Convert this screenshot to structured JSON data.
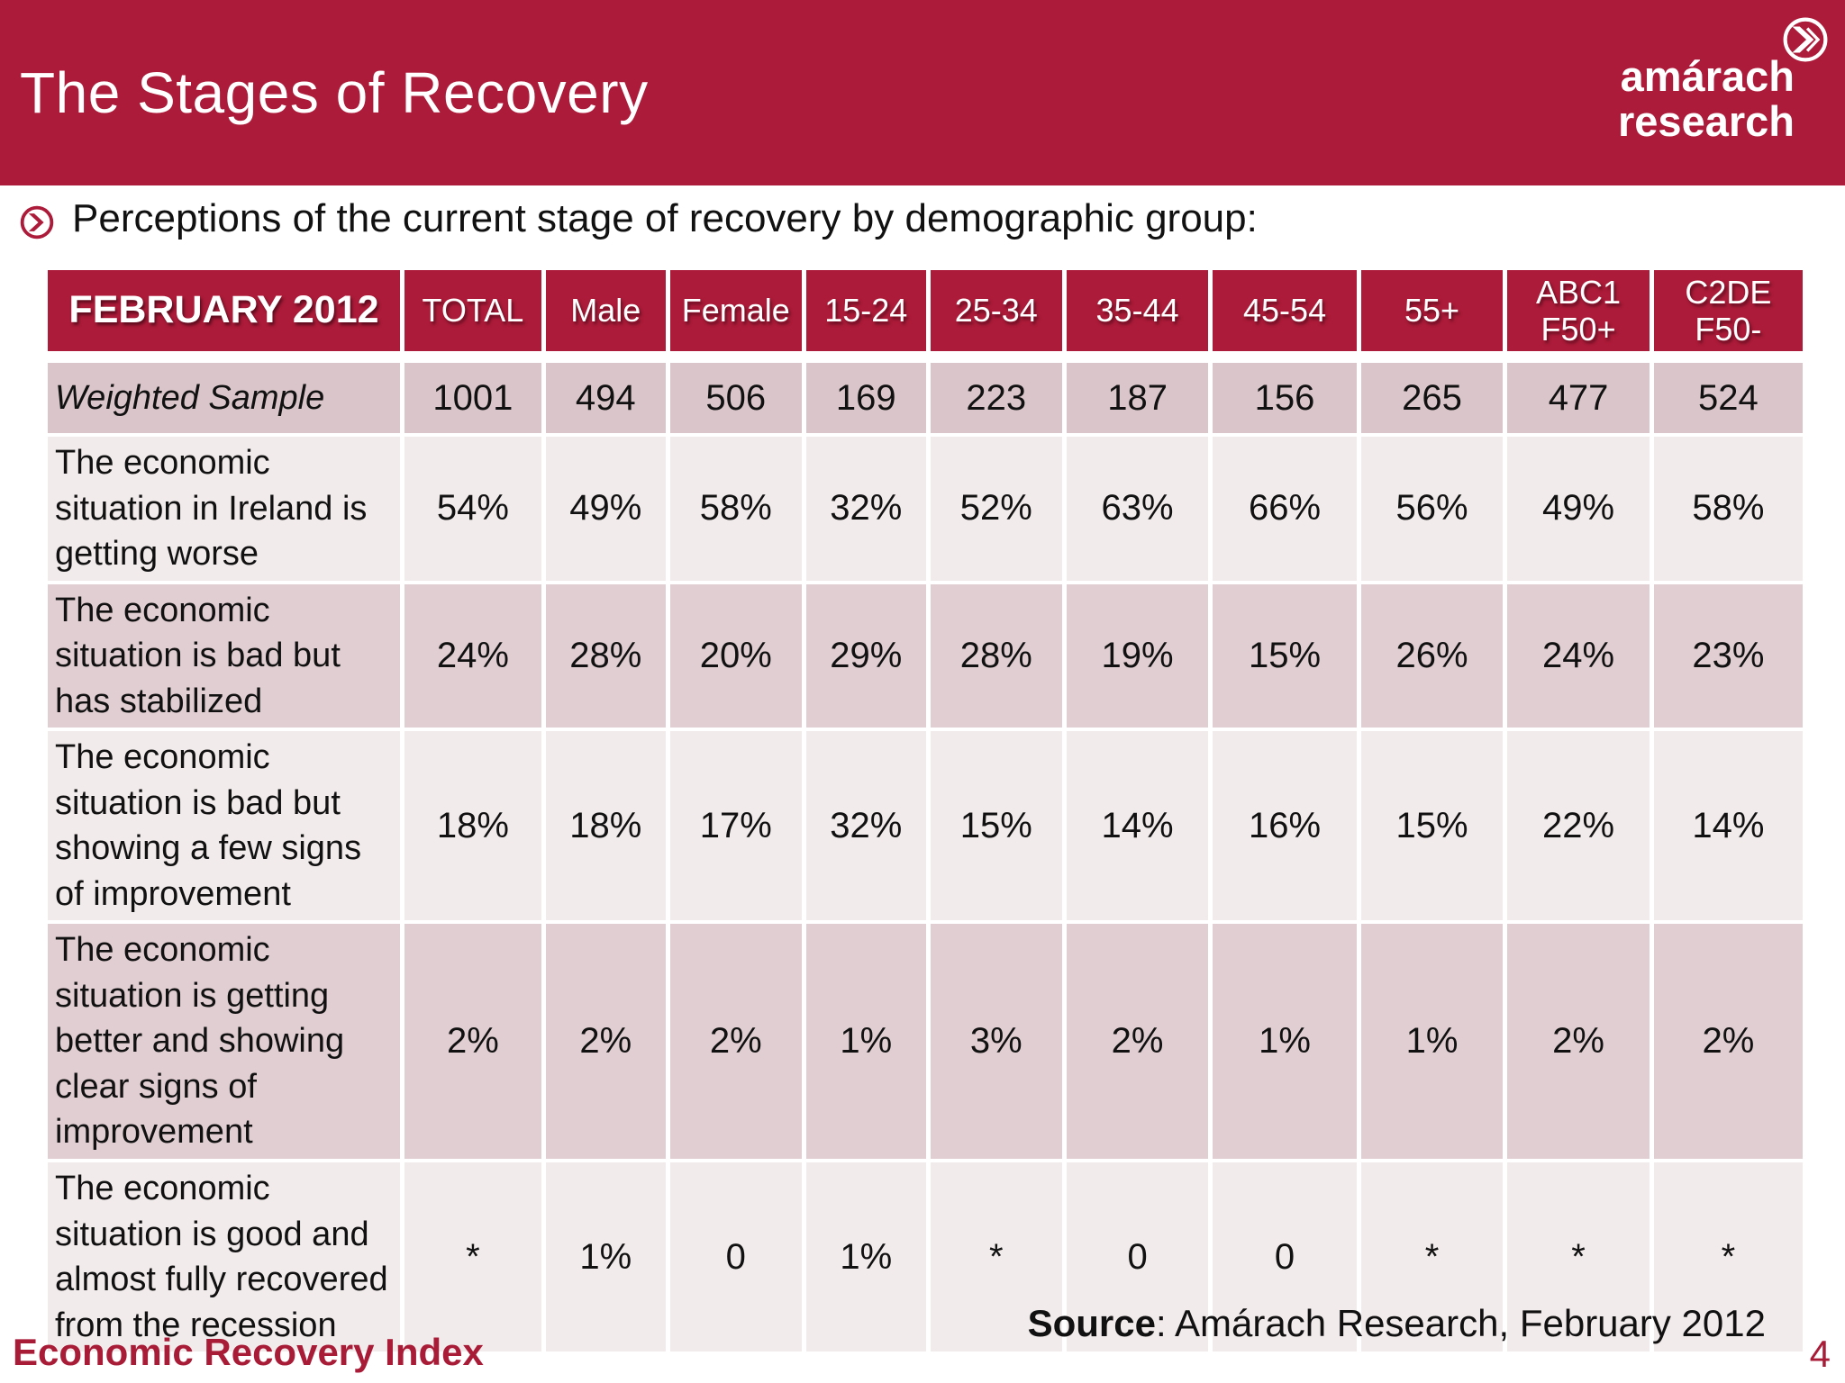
{
  "slide": {
    "title": "The Stages of Recovery",
    "logo": {
      "line1": "amárach",
      "line2": "research",
      "icon": "double-chevron-right-circle"
    },
    "subtitle": "Perceptions of the current stage of recovery by demographic group:",
    "footer": {
      "left_label": "Economic Recovery Index",
      "source_label": "Source",
      "source_text": ": Amárach Research, February 2012",
      "page_number": "4"
    }
  },
  "table": {
    "header": [
      "FEBRUARY 2012",
      "TOTAL",
      "Male",
      "Female",
      "15-24",
      "25-34",
      "35-44",
      "45-54",
      "55+",
      "ABC1\nF50+",
      "C2DE\nF50-"
    ],
    "rows": [
      {
        "label": "Weighted Sample",
        "values": [
          "1001",
          "494",
          "506",
          "169",
          "223",
          "187",
          "156",
          "265",
          "477",
          "524"
        ]
      },
      {
        "label": "The economic situation in Ireland is getting worse",
        "values": [
          "54%",
          "49%",
          "58%",
          "32%",
          "52%",
          "63%",
          "66%",
          "56%",
          "49%",
          "58%"
        ]
      },
      {
        "label": "The economic situation is bad but has stabilized",
        "values": [
          "24%",
          "28%",
          "20%",
          "29%",
          "28%",
          "19%",
          "15%",
          "26%",
          "24%",
          "23%"
        ]
      },
      {
        "label": "The economic situation is bad but showing a few signs of improvement",
        "values": [
          "18%",
          "18%",
          "17%",
          "32%",
          "15%",
          "14%",
          "16%",
          "15%",
          "22%",
          "14%"
        ]
      },
      {
        "label": "The economic situation is getting better and showing clear signs of improvement",
        "values": [
          "2%",
          "2%",
          "2%",
          "1%",
          "3%",
          "2%",
          "1%",
          "1%",
          "2%",
          "2%"
        ]
      },
      {
        "label": "The economic situation is good and almost fully recovered from the recession",
        "values": [
          "*",
          "1%",
          "0",
          "1%",
          "*",
          "0",
          "0",
          "*",
          "*",
          "*"
        ]
      }
    ]
  },
  "colors": {
    "crimson": "#AC1B39",
    "footer_crimson": "#A91C38",
    "row_light": "#F2EBEB",
    "row_dark": "#E1CED2",
    "row_weighted": "#DAC6CA",
    "text": "#111111",
    "header_text": "#FFFFFF"
  }
}
